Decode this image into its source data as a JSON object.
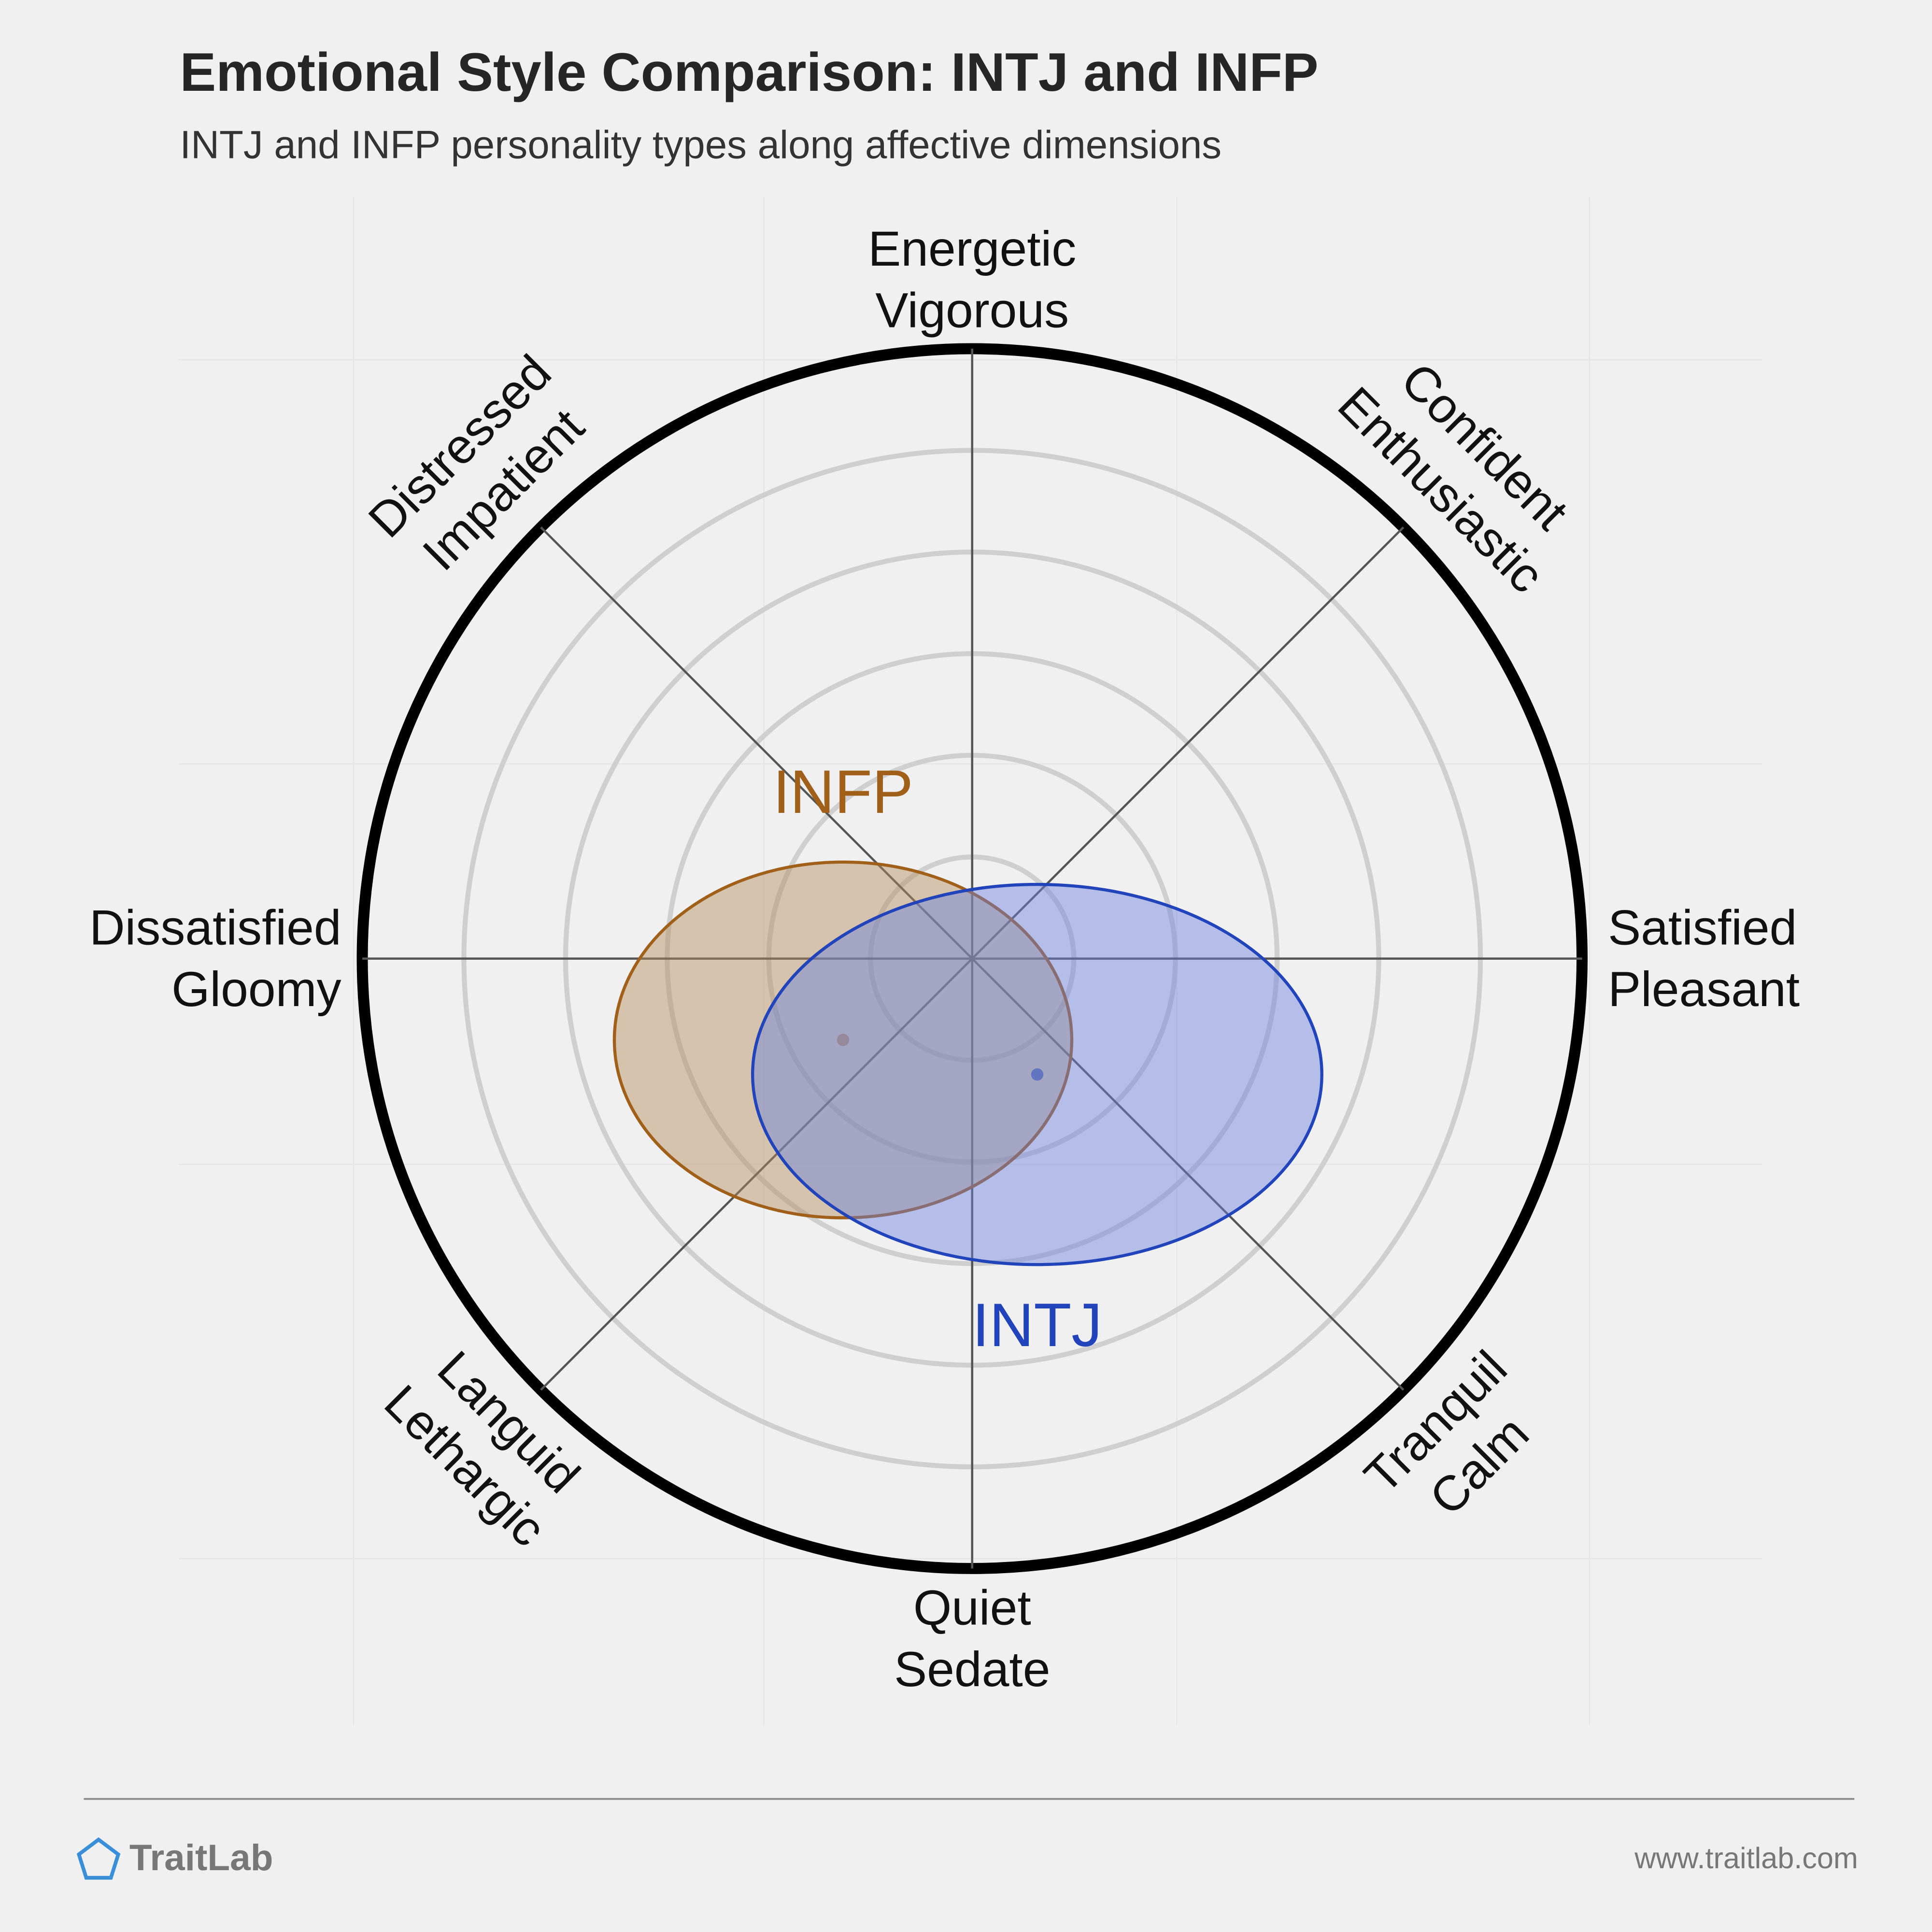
{
  "chart_data": {
    "type": "circumplex",
    "title": "Emotional Style Comparison: INTJ and INFP",
    "subtitle": "INTJ and INFP personality types along affective dimensions",
    "axes": [
      [
        "Energetic",
        "Vigorous"
      ],
      [
        "Confident",
        "Enthusiastic"
      ],
      [
        "Satisfied",
        "Pleasant"
      ],
      [
        "Tranquil",
        "Calm"
      ],
      [
        "Quiet",
        "Sedate"
      ],
      [
        "Languid",
        "Lethargic"
      ],
      [
        "Dissatisfied",
        "Gloomy"
      ],
      [
        "Distressed",
        "Impatient"
      ]
    ],
    "xlim": [
      -6,
      6
    ],
    "ylim": [
      -6,
      6
    ],
    "rticks": [
      1,
      2,
      3,
      4,
      5,
      6
    ],
    "series": [
      {
        "name": "INFP",
        "color": "#a0601a",
        "fill": "#b48c5a",
        "center": [
          -1.27,
          -0.8
        ],
        "radii": [
          2.25,
          1.75
        ]
      },
      {
        "name": "INTJ",
        "color": "#2244bb",
        "fill": "#6a80e0",
        "center": [
          0.64,
          -1.14
        ],
        "radii": [
          2.8,
          1.87
        ]
      }
    ]
  },
  "footer": {
    "brand": "TraitLab",
    "url": "www.traitlab.com"
  }
}
